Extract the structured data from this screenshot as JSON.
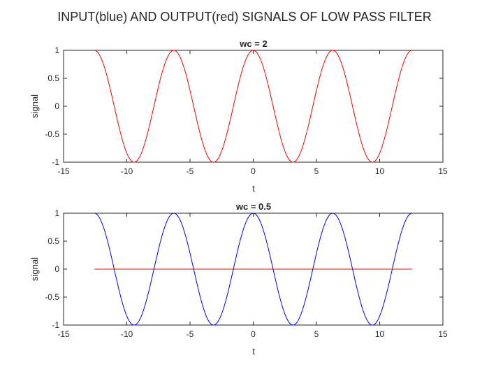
{
  "figure": {
    "suptitle": "INPUT(blue) AND OUTPUT(red) SIGNALS OF LOW PASS FILTER"
  },
  "colors": {
    "input": "#0000ff",
    "output": "#ff0000",
    "axes": "#262626"
  },
  "chart_data": [
    {
      "type": "line",
      "title": "wc = 2",
      "xlabel": "t",
      "ylabel": "signal",
      "xlim": [
        -15,
        15
      ],
      "ylim": [
        -1,
        1
      ],
      "xticks": [
        -15,
        -10,
        -5,
        0,
        5,
        10,
        15
      ],
      "yticks": [
        -1,
        -0.5,
        0,
        0.5,
        1
      ],
      "xtick_labels": [
        "-15",
        "-10",
        "-5",
        "0",
        "5",
        "10",
        "15"
      ],
      "ytick_labels": [
        "-1",
        "-0.5",
        "0",
        "0.5",
        "1"
      ],
      "grid": false,
      "series": [
        {
          "function": "cos(t)",
          "t_range": [
            -12.566,
            12.566
          ],
          "color": "#ff0000"
        }
      ]
    },
    {
      "type": "line",
      "title": "wc = 0.5",
      "xlabel": "t",
      "ylabel": "signal",
      "xlim": [
        -15,
        15
      ],
      "ylim": [
        -1,
        1
      ],
      "xticks": [
        -15,
        -10,
        -5,
        0,
        5,
        10,
        15
      ],
      "yticks": [
        -1,
        -0.5,
        0,
        0.5,
        1
      ],
      "xtick_labels": [
        "-15",
        "-10",
        "-5",
        "0",
        "5",
        "10",
        "15"
      ],
      "ytick_labels": [
        "-1",
        "-0.5",
        "0",
        "0.5",
        "1"
      ],
      "grid": false,
      "series": [
        {
          "function": "cos(t)",
          "t_range": [
            -12.566,
            12.566
          ],
          "color": "#0000ff"
        },
        {
          "function": "0",
          "t_range": [
            -12.566,
            12.566
          ],
          "color": "#ff0000"
        }
      ]
    }
  ]
}
